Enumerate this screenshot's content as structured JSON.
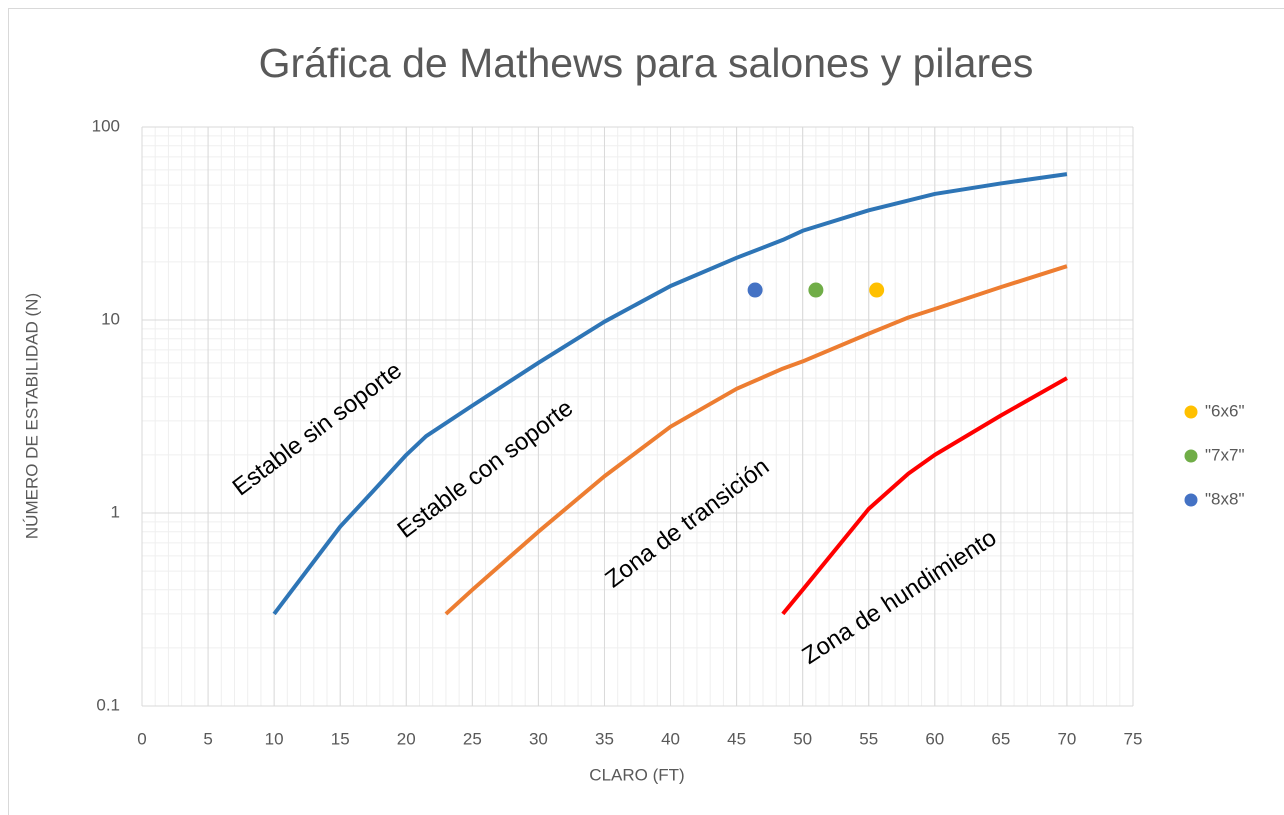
{
  "chart_data": {
    "type": "line",
    "title": "Gráfica de Mathews para salones y pilares",
    "x_label": "CLARO (FT)",
    "y_label": "NÚMERO DE ESTABILIDAD (N)",
    "xlim": [
      0,
      75
    ],
    "xticks": [
      0,
      5,
      10,
      15,
      20,
      25,
      30,
      35,
      40,
      45,
      50,
      55,
      60,
      65,
      70,
      75
    ],
    "ylim": [
      0.1,
      100
    ],
    "yticks": [
      0.1,
      1,
      10,
      100
    ],
    "y_log": true,
    "grid": true,
    "minor_grid": true,
    "legend": "right",
    "series": [
      {
        "color": "#2e75b6",
        "style": "line",
        "x": [
          10,
          15,
          17.5,
          20,
          21.5,
          25,
          30,
          35,
          40,
          45,
          48.5,
          50,
          55,
          60,
          65,
          70
        ],
        "values": [
          0.3,
          0.85,
          1.3,
          2.0,
          2.5,
          3.6,
          6,
          9.8,
          15,
          21,
          26,
          29,
          37,
          45,
          51,
          57
        ]
      },
      {
        "color": "#ed7d31",
        "style": "line",
        "x": [
          23,
          25,
          30,
          35,
          40,
          45,
          48.5,
          50,
          55,
          58,
          60,
          65,
          70
        ],
        "values": [
          0.3,
          0.4,
          0.8,
          1.55,
          2.8,
          4.4,
          5.6,
          6.1,
          8.5,
          10.3,
          11.4,
          14.8,
          19
        ]
      },
      {
        "color": "#ff0000",
        "style": "line",
        "x": [
          48.5,
          50,
          55,
          58,
          60,
          65,
          70
        ],
        "values": [
          0.3,
          0.4,
          1.05,
          1.6,
          2.0,
          3.2,
          5
        ]
      },
      {
        "name": "\"6x6\"",
        "color": "#ffc000",
        "style": "marker",
        "x": [
          55.6
        ],
        "values": [
          14.3
        ]
      },
      {
        "name": "\"7x7\"",
        "color": "#70ad47",
        "style": "marker",
        "x": [
          51
        ],
        "values": [
          14.3
        ]
      },
      {
        "name": "\"8x8\"",
        "color": "#4472c4",
        "style": "marker",
        "x": [
          46.4
        ],
        "values": [
          14.3
        ]
      }
    ],
    "annotations": [
      "Estable sin soporte",
      "Estable con soporte",
      "Zona de transición",
      "Zona de hundimiento"
    ]
  }
}
